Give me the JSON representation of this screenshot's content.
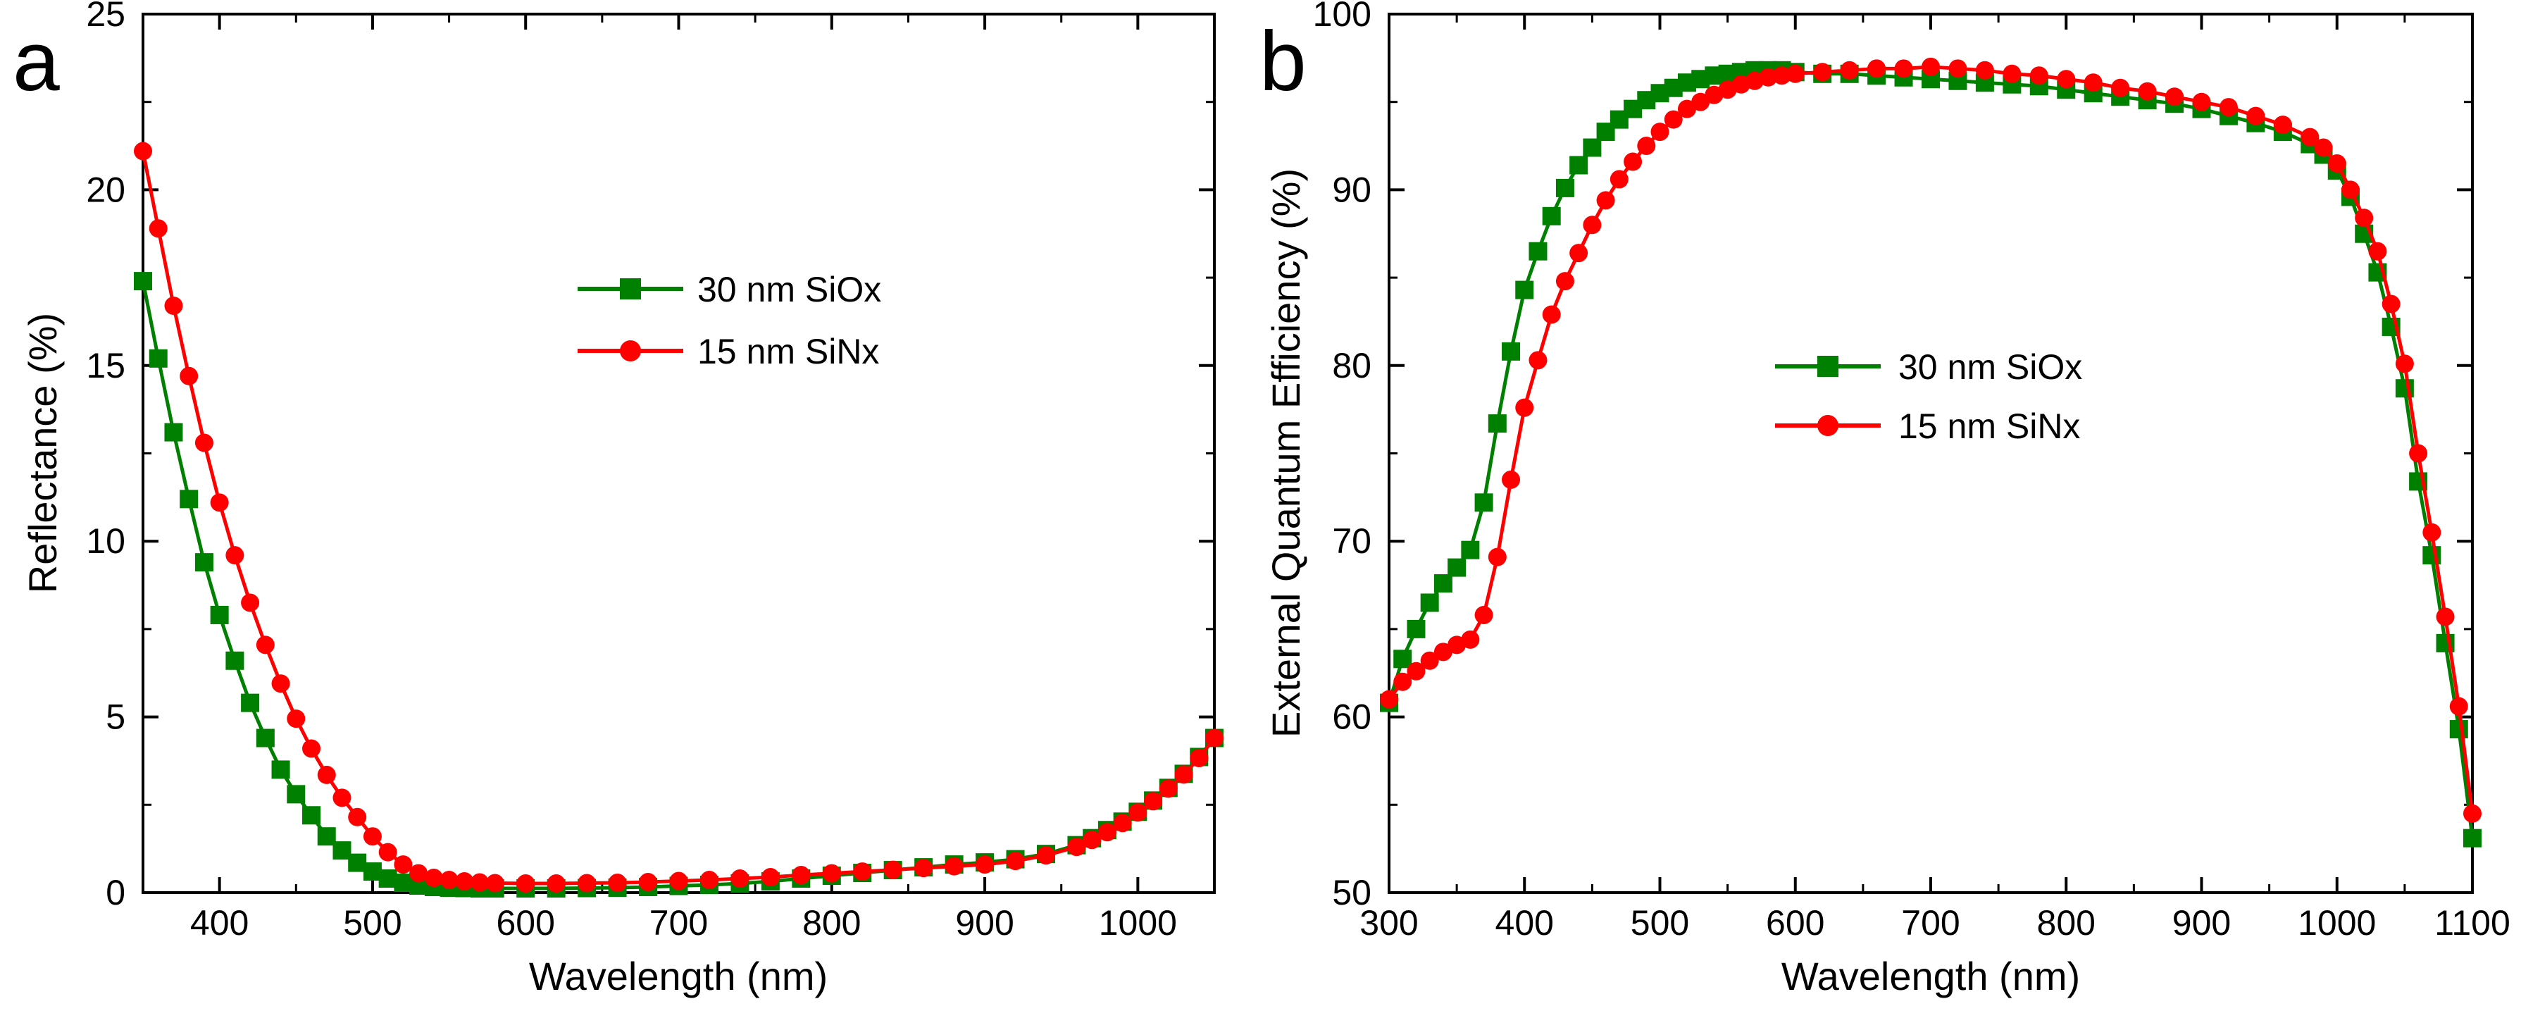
{
  "colors": {
    "sio": "#008000",
    "sin": "#ff0000",
    "axis": "#000000"
  },
  "chart_data": [
    {
      "panel_label": "a",
      "type": "line",
      "xlabel": "Wavelength (nm)",
      "ylabel": "Reflectance (%)",
      "xlim": [
        350,
        1050
      ],
      "ylim": [
        0,
        25
      ],
      "xticks": [
        400,
        500,
        600,
        700,
        800,
        900,
        1000
      ],
      "yticks": [
        0,
        5,
        10,
        15,
        20,
        25
      ],
      "legend_position": "center",
      "series": [
        {
          "name": "30 nm SiOx",
          "color_key": "sio",
          "marker": "square",
          "points": [
            [
              350,
              17.4
            ],
            [
              360,
              15.2
            ],
            [
              370,
              13.1
            ],
            [
              380,
              11.2
            ],
            [
              390,
              9.4
            ],
            [
              400,
              7.9
            ],
            [
              410,
              6.6
            ],
            [
              420,
              5.4
            ],
            [
              430,
              4.4
            ],
            [
              440,
              3.5
            ],
            [
              450,
              2.8
            ],
            [
              460,
              2.2
            ],
            [
              470,
              1.6
            ],
            [
              480,
              1.2
            ],
            [
              490,
              0.85
            ],
            [
              500,
              0.6
            ],
            [
              510,
              0.4
            ],
            [
              520,
              0.28
            ],
            [
              530,
              0.2
            ],
            [
              540,
              0.16
            ],
            [
              550,
              0.14
            ],
            [
              560,
              0.13
            ],
            [
              570,
              0.12
            ],
            [
              580,
              0.12
            ],
            [
              600,
              0.12
            ],
            [
              620,
              0.12
            ],
            [
              640,
              0.13
            ],
            [
              660,
              0.14
            ],
            [
              680,
              0.16
            ],
            [
              700,
              0.19
            ],
            [
              720,
              0.22
            ],
            [
              740,
              0.26
            ],
            [
              760,
              0.32
            ],
            [
              780,
              0.4
            ],
            [
              800,
              0.48
            ],
            [
              820,
              0.56
            ],
            [
              840,
              0.64
            ],
            [
              860,
              0.72
            ],
            [
              880,
              0.8
            ],
            [
              900,
              0.86
            ],
            [
              920,
              0.95
            ],
            [
              940,
              1.1
            ],
            [
              960,
              1.35
            ],
            [
              970,
              1.55
            ],
            [
              980,
              1.78
            ],
            [
              990,
              2.02
            ],
            [
              1000,
              2.3
            ],
            [
              1010,
              2.62
            ],
            [
              1020,
              2.98
            ],
            [
              1030,
              3.38
            ],
            [
              1040,
              3.86
            ],
            [
              1050,
              4.4
            ]
          ]
        },
        {
          "name": "15 nm SiNx",
          "color_key": "sin",
          "marker": "circle",
          "points": [
            [
              350,
              21.1
            ],
            [
              360,
              18.9
            ],
            [
              370,
              16.7
            ],
            [
              380,
              14.7
            ],
            [
              390,
              12.8
            ],
            [
              400,
              11.1
            ],
            [
              410,
              9.6
            ],
            [
              420,
              8.25
            ],
            [
              430,
              7.05
            ],
            [
              440,
              5.95
            ],
            [
              450,
              4.95
            ],
            [
              460,
              4.1
            ],
            [
              470,
              3.35
            ],
            [
              480,
              2.7
            ],
            [
              490,
              2.15
            ],
            [
              500,
              1.6
            ],
            [
              510,
              1.15
            ],
            [
              520,
              0.8
            ],
            [
              530,
              0.55
            ],
            [
              540,
              0.42
            ],
            [
              550,
              0.36
            ],
            [
              560,
              0.32
            ],
            [
              570,
              0.29
            ],
            [
              580,
              0.27
            ],
            [
              600,
              0.26
            ],
            [
              620,
              0.26
            ],
            [
              640,
              0.27
            ],
            [
              660,
              0.28
            ],
            [
              680,
              0.3
            ],
            [
              700,
              0.33
            ],
            [
              720,
              0.36
            ],
            [
              740,
              0.4
            ],
            [
              760,
              0.44
            ],
            [
              780,
              0.5
            ],
            [
              800,
              0.55
            ],
            [
              820,
              0.6
            ],
            [
              840,
              0.65
            ],
            [
              860,
              0.7
            ],
            [
              880,
              0.75
            ],
            [
              900,
              0.8
            ],
            [
              920,
              0.9
            ],
            [
              940,
              1.06
            ],
            [
              960,
              1.3
            ],
            [
              970,
              1.5
            ],
            [
              980,
              1.72
            ],
            [
              990,
              1.98
            ],
            [
              1000,
              2.28
            ],
            [
              1010,
              2.6
            ],
            [
              1020,
              2.96
            ],
            [
              1030,
              3.36
            ],
            [
              1040,
              3.83
            ],
            [
              1050,
              4.4
            ]
          ]
        }
      ]
    },
    {
      "panel_label": "b",
      "type": "line",
      "xlabel": "Wavelength (nm)",
      "ylabel": "External Quantum Efficiency (%)",
      "xlim": [
        300,
        1100
      ],
      "ylim": [
        50,
        100
      ],
      "xticks": [
        300,
        400,
        500,
        600,
        700,
        800,
        900,
        1000,
        1100
      ],
      "yticks": [
        50,
        60,
        70,
        80,
        90,
        100
      ],
      "legend_position": "center",
      "series": [
        {
          "name": "30 nm SiOx",
          "color_key": "sio",
          "marker": "square",
          "points": [
            [
              300,
              60.8
            ],
            [
              310,
              63.3
            ],
            [
              320,
              65
            ],
            [
              330,
              66.5
            ],
            [
              340,
              67.6
            ],
            [
              350,
              68.5
            ],
            [
              360,
              69.5
            ],
            [
              370,
              72.2
            ],
            [
              380,
              76.7
            ],
            [
              390,
              80.8
            ],
            [
              400,
              84.3
            ],
            [
              410,
              86.5
            ],
            [
              420,
              88.5
            ],
            [
              430,
              90.1
            ],
            [
              440,
              91.4
            ],
            [
              450,
              92.4
            ],
            [
              460,
              93.3
            ],
            [
              470,
              94.0
            ],
            [
              480,
              94.6
            ],
            [
              490,
              95.1
            ],
            [
              500,
              95.5
            ],
            [
              510,
              95.8
            ],
            [
              520,
              96.1
            ],
            [
              530,
              96.3
            ],
            [
              540,
              96.5
            ],
            [
              550,
              96.6
            ],
            [
              560,
              96.7
            ],
            [
              570,
              96.8
            ],
            [
              580,
              96.8
            ],
            [
              590,
              96.8
            ],
            [
              600,
              96.7
            ],
            [
              620,
              96.6
            ],
            [
              640,
              96.6
            ],
            [
              660,
              96.5
            ],
            [
              680,
              96.4
            ],
            [
              700,
              96.3
            ],
            [
              720,
              96.2
            ],
            [
              740,
              96.1
            ],
            [
              760,
              96.0
            ],
            [
              780,
              95.9
            ],
            [
              800,
              95.7
            ],
            [
              820,
              95.5
            ],
            [
              840,
              95.3
            ],
            [
              860,
              95.1
            ],
            [
              880,
              94.9
            ],
            [
              900,
              94.6
            ],
            [
              920,
              94.2
            ],
            [
              940,
              93.8
            ],
            [
              960,
              93.3
            ],
            [
              980,
              92.6
            ],
            [
              990,
              92.0
            ],
            [
              1000,
              91.1
            ],
            [
              1010,
              89.6
            ],
            [
              1020,
              87.5
            ],
            [
              1030,
              85.3
            ],
            [
              1040,
              82.2
            ],
            [
              1050,
              78.7
            ],
            [
              1060,
              73.4
            ],
            [
              1070,
              69.2
            ],
            [
              1080,
              64.2
            ],
            [
              1090,
              59.3
            ],
            [
              1100,
              53.1
            ]
          ]
        },
        {
          "name": "15 nm SiNx",
          "color_key": "sin",
          "marker": "circle",
          "points": [
            [
              300,
              61.0
            ],
            [
              310,
              62.0
            ],
            [
              320,
              62.6
            ],
            [
              330,
              63.2
            ],
            [
              340,
              63.7
            ],
            [
              350,
              64.1
            ],
            [
              360,
              64.4
            ],
            [
              370,
              65.8
            ],
            [
              380,
              69.1
            ],
            [
              390,
              73.5
            ],
            [
              400,
              77.6
            ],
            [
              410,
              80.3
            ],
            [
              420,
              82.9
            ],
            [
              430,
              84.8
            ],
            [
              440,
              86.4
            ],
            [
              450,
              88.0
            ],
            [
              460,
              89.4
            ],
            [
              470,
              90.6
            ],
            [
              480,
              91.6
            ],
            [
              490,
              92.5
            ],
            [
              500,
              93.3
            ],
            [
              510,
              94.0
            ],
            [
              520,
              94.6
            ],
            [
              530,
              95.0
            ],
            [
              540,
              95.4
            ],
            [
              550,
              95.7
            ],
            [
              560,
              96.0
            ],
            [
              570,
              96.2
            ],
            [
              580,
              96.4
            ],
            [
              590,
              96.5
            ],
            [
              600,
              96.6
            ],
            [
              620,
              96.7
            ],
            [
              640,
              96.8
            ],
            [
              660,
              96.9
            ],
            [
              680,
              96.9
            ],
            [
              700,
              97.0
            ],
            [
              720,
              96.9
            ],
            [
              740,
              96.8
            ],
            [
              760,
              96.6
            ],
            [
              780,
              96.5
            ],
            [
              800,
              96.3
            ],
            [
              820,
              96.1
            ],
            [
              840,
              95.8
            ],
            [
              860,
              95.6
            ],
            [
              880,
              95.3
            ],
            [
              900,
              95.0
            ],
            [
              920,
              94.7
            ],
            [
              940,
              94.2
            ],
            [
              960,
              93.7
            ],
            [
              980,
              93.0
            ],
            [
              990,
              92.4
            ],
            [
              1000,
              91.5
            ],
            [
              1010,
              90.0
            ],
            [
              1020,
              88.4
            ],
            [
              1030,
              86.5
            ],
            [
              1040,
              83.5
            ],
            [
              1050,
              80.1
            ],
            [
              1060,
              75.0
            ],
            [
              1070,
              70.5
            ],
            [
              1080,
              65.7
            ],
            [
              1090,
              60.6
            ],
            [
              1100,
              54.5
            ]
          ]
        }
      ]
    }
  ]
}
